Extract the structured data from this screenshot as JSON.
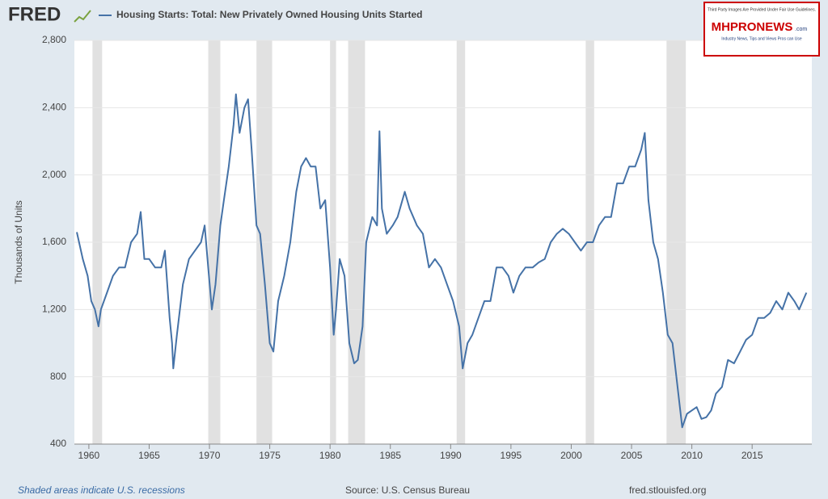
{
  "chart_data": {
    "type": "line",
    "logo": "FRED",
    "title": "Housing Starts: Total: New Privately Owned Housing Units Started",
    "y_label": "Thousands of Units",
    "recession_note": "Shaded areas indicate U.S. recessions",
    "source": "Source: U.S. Census Bureau",
    "site": "fred.stlouisfed.org",
    "watermark": {
      "top": "Third Party Images Are Provided Under Fair Use Guidelines.",
      "brand": "MHPRONEWS",
      "domain": ".com",
      "tagline": "Industry News, Tips and Views Pros can Use"
    },
    "x": [
      1959.0,
      1959.5,
      1959.9,
      1960.2,
      1960.5,
      1960.8,
      1961.0,
      1961.5,
      1962.0,
      1962.5,
      1963.0,
      1963.5,
      1964.0,
      1964.3,
      1964.6,
      1965.0,
      1965.5,
      1966.0,
      1966.3,
      1966.7,
      1966.9,
      1967.0,
      1967.3,
      1967.8,
      1968.3,
      1968.8,
      1969.3,
      1969.6,
      1969.9,
      1970.2,
      1970.5,
      1970.9,
      1971.2,
      1971.6,
      1972.0,
      1972.2,
      1972.5,
      1972.9,
      1973.2,
      1973.5,
      1973.9,
      1974.2,
      1974.6,
      1975.0,
      1975.3,
      1975.7,
      1976.2,
      1976.7,
      1977.2,
      1977.6,
      1978.0,
      1978.4,
      1978.8,
      1979.2,
      1979.6,
      1980.0,
      1980.3,
      1980.5,
      1980.8,
      1981.2,
      1981.6,
      1982.0,
      1982.3,
      1982.7,
      1983.0,
      1983.5,
      1983.9,
      1984.1,
      1984.3,
      1984.7,
      1985.2,
      1985.6,
      1986.2,
      1986.6,
      1987.2,
      1987.7,
      1988.2,
      1988.7,
      1989.2,
      1989.7,
      1990.2,
      1990.7,
      1991.0,
      1991.4,
      1991.8,
      1992.3,
      1992.8,
      1993.3,
      1993.8,
      1994.3,
      1994.8,
      1995.2,
      1995.7,
      1996.2,
      1996.8,
      1997.3,
      1997.8,
      1998.3,
      1998.8,
      1999.3,
      1999.8,
      2000.3,
      2000.8,
      2001.3,
      2001.8,
      2002.3,
      2002.8,
      2003.3,
      2003.8,
      2004.3,
      2004.8,
      2005.3,
      2005.8,
      2006.1,
      2006.4,
      2006.8,
      2007.2,
      2007.6,
      2008.0,
      2008.4,
      2008.8,
      2009.2,
      2009.6,
      2010.0,
      2010.4,
      2010.8,
      2011.2,
      2011.6,
      2012.0,
      2012.5,
      2013.0,
      2013.5,
      2014.0,
      2014.5,
      2015.0,
      2015.5,
      2016.0,
      2016.5,
      2017.0,
      2017.5,
      2018.0,
      2018.5,
      2018.9,
      2019.2,
      2019.5
    ],
    "series": [
      {
        "name": "Housing Starts: Total: New Privately Owned Housing Units Started",
        "color": "#4572a7",
        "values": [
          1660,
          1500,
          1400,
          1250,
          1200,
          1100,
          1200,
          1300,
          1400,
          1450,
          1450,
          1600,
          1650,
          1780,
          1500,
          1500,
          1450,
          1450,
          1550,
          1150,
          1000,
          850,
          1050,
          1350,
          1500,
          1550,
          1600,
          1700,
          1450,
          1200,
          1350,
          1700,
          1850,
          2050,
          2300,
          2480,
          2250,
          2400,
          2450,
          2150,
          1700,
          1650,
          1350,
          1000,
          950,
          1250,
          1400,
          1600,
          1900,
          2050,
          2100,
          2050,
          2050,
          1800,
          1850,
          1450,
          1050,
          1200,
          1500,
          1400,
          1000,
          880,
          900,
          1100,
          1600,
          1750,
          1700,
          2260,
          1800,
          1650,
          1700,
          1750,
          1900,
          1800,
          1700,
          1650,
          1450,
          1500,
          1450,
          1350,
          1250,
          1100,
          850,
          1000,
          1050,
          1150,
          1250,
          1250,
          1450,
          1450,
          1400,
          1300,
          1400,
          1450,
          1450,
          1480,
          1500,
          1600,
          1650,
          1680,
          1650,
          1600,
          1550,
          1600,
          1600,
          1700,
          1750,
          1750,
          1950,
          1950,
          2050,
          2050,
          2150,
          2250,
          1850,
          1600,
          1500,
          1300,
          1050,
          1000,
          750,
          500,
          580,
          600,
          620,
          550,
          560,
          600,
          700,
          740,
          900,
          880,
          950,
          1020,
          1050,
          1150,
          1150,
          1180,
          1250,
          1200,
          1300,
          1250,
          1200,
          1250,
          1300
        ]
      }
    ],
    "recessions": [
      [
        1960.3,
        1961.1
      ],
      [
        1969.9,
        1970.9
      ],
      [
        1973.9,
        1975.2
      ],
      [
        1980.0,
        1980.5
      ],
      [
        1981.5,
        1982.9
      ],
      [
        1990.5,
        1991.2
      ],
      [
        2001.2,
        2001.9
      ],
      [
        2007.9,
        2009.5
      ]
    ],
    "recession_color": "#e1e1e1",
    "xlim": [
      1958.8,
      2019.95
    ],
    "xticks": [
      1960,
      1965,
      1970,
      1975,
      1980,
      1985,
      1990,
      1995,
      2000,
      2005,
      2010,
      2015
    ],
    "ylim": [
      400,
      2800
    ],
    "yticks": [
      400,
      800,
      {
        "value": 1200,
        "label": "1,200"
      },
      {
        "value": 1600,
        "label": "1,600"
      },
      {
        "value": 2000,
        "label": "2,000"
      },
      {
        "value": 2400,
        "label": "2,400"
      },
      {
        "value": 2800,
        "label": "2,800"
      }
    ],
    "grid": true
  }
}
